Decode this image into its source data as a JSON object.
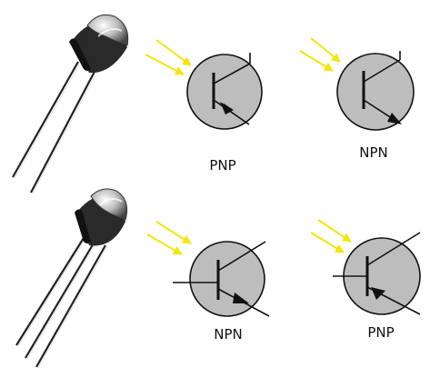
{
  "colors": {
    "background": "#ffffff",
    "circle_fill": "#bdbdbd",
    "light_arrow": "#f2e60a",
    "lead": "#222222",
    "component_body": "#2a2a2a"
  },
  "components": [
    {
      "kind": "two-lead phototransistor",
      "icon": "phototransistor-2lead-icon"
    },
    {
      "kind": "three-lead phototransistor",
      "icon": "phototransistor-3lead-icon"
    }
  ],
  "symbols": [
    {
      "label": "PNP"
    },
    {
      "label": "NPN"
    },
    {
      "label": "NPN"
    },
    {
      "label": "PNP"
    }
  ]
}
